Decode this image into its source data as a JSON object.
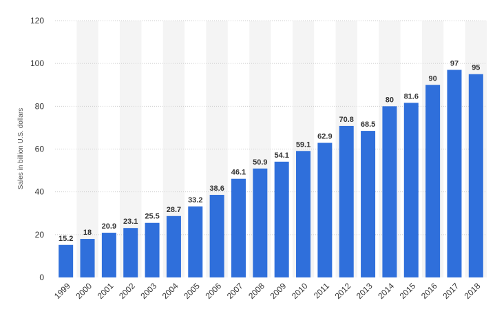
{
  "chart_data": {
    "type": "bar",
    "categories": [
      "1999",
      "2000",
      "2001",
      "2002",
      "2003",
      "2004",
      "2005",
      "2006",
      "2007",
      "2008",
      "2009",
      "2010",
      "2011",
      "2012",
      "2013",
      "2014",
      "2015",
      "2016",
      "2017",
      "2018"
    ],
    "values": [
      15.2,
      18,
      20.9,
      23.1,
      25.5,
      28.7,
      33.2,
      38.6,
      46.1,
      50.9,
      54.1,
      59.1,
      62.9,
      70.8,
      68.5,
      80,
      81.6,
      90,
      97,
      95
    ],
    "data_labels": [
      "15.2",
      "18",
      "20.9",
      "23.1",
      "25.5",
      "28.7",
      "33.2",
      "38.6",
      "46.1",
      "50.9",
      "54.1",
      "59.1",
      "62.9",
      "70.8",
      "68.5",
      "80",
      "81.6",
      "90",
      "97",
      "95"
    ],
    "title": "",
    "xlabel": "",
    "ylabel": "Sales in billion U.S. dollars",
    "ylim": [
      0,
      120
    ],
    "yticks": [
      "0",
      "20",
      "40",
      "60",
      "80",
      "100",
      "120"
    ],
    "grid": true,
    "legend": "none",
    "colors": {
      "bar": "#2f6fdb",
      "alt_band": "#f4f4f4",
      "grid": "#cccccc",
      "text": "#333333"
    }
  }
}
